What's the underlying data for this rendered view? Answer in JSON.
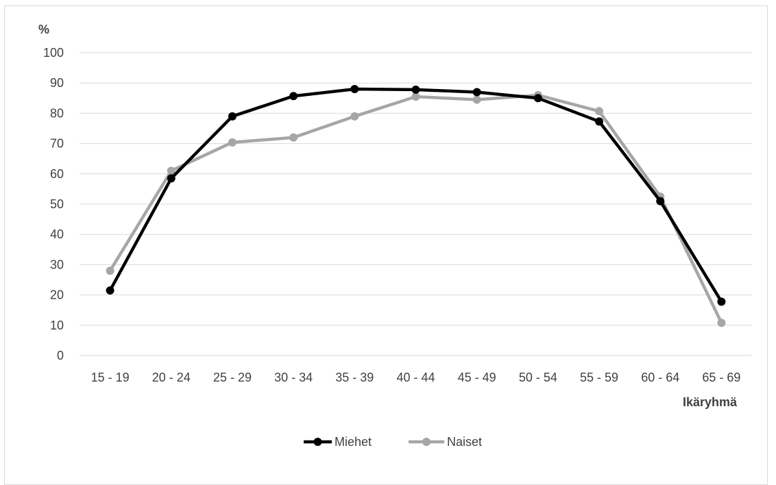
{
  "chart_data": {
    "type": "line",
    "ylabel": "%",
    "xlabel": "Ikäryhmä",
    "ylim": [
      0,
      100
    ],
    "yticks": [
      0,
      10,
      20,
      30,
      40,
      50,
      60,
      70,
      80,
      90,
      100
    ],
    "categories": [
      "15 - 19",
      "20 - 24",
      "25 - 29",
      "30 - 34",
      "35 - 39",
      "40 - 44",
      "45 - 49",
      "50 - 54",
      "55 - 59",
      "60 - 64",
      "65 - 69"
    ],
    "series": [
      {
        "name": "Miehet",
        "color": "#000000",
        "values": [
          21.5,
          58.5,
          79,
          85.7,
          88,
          87.8,
          87,
          85,
          77.3,
          51,
          17.8
        ]
      },
      {
        "name": "Naiset",
        "color": "#a6a6a6",
        "values": [
          28,
          61,
          70.4,
          72,
          79,
          85.5,
          84.5,
          86,
          80.7,
          52.5,
          10.8
        ]
      }
    ],
    "grid": true,
    "legend_position": "bottom"
  }
}
